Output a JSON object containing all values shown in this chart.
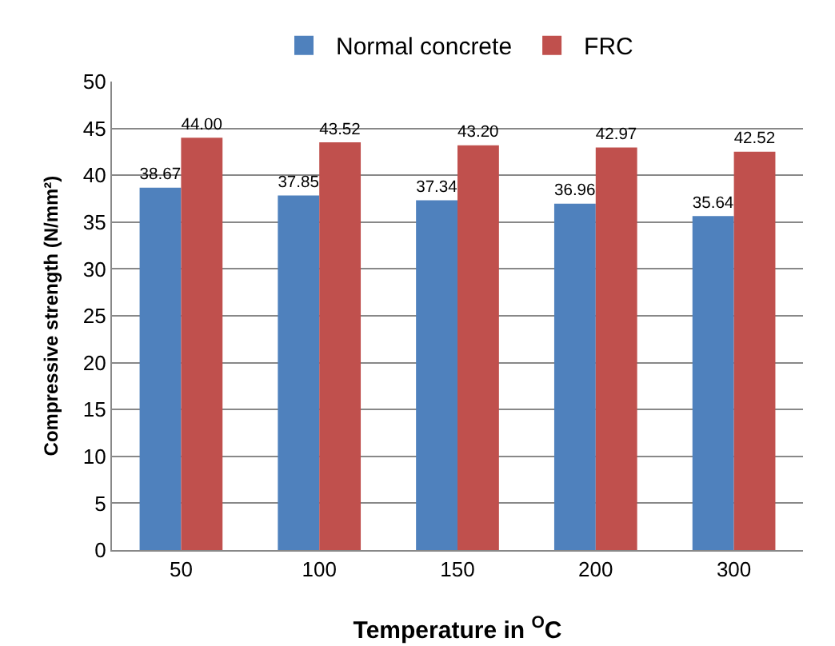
{
  "chart_data": {
    "type": "bar",
    "xlabel": "Temperature in $^{O}$C",
    "ylabel": "Compressive strength (N/mm²)",
    "categories": [
      "50",
      "100",
      "150",
      "200",
      "300"
    ],
    "series": [
      {
        "name": "Normal concrete",
        "color": "#4f81bd",
        "values": [
          38.67,
          37.85,
          37.34,
          36.96,
          35.64
        ],
        "value_labels": [
          "38.67",
          "37.85",
          "37.34",
          "36.96",
          "35.64"
        ]
      },
      {
        "name": "FRC",
        "color": "#c0504d",
        "values": [
          44.0,
          43.52,
          43.2,
          42.97,
          42.52
        ],
        "value_labels": [
          "44.00",
          "43.52",
          "43.20",
          "42.97",
          "42.52"
        ]
      }
    ],
    "ylim": [
      0,
      50
    ],
    "yticks": [
      0,
      5,
      10,
      15,
      20,
      25,
      30,
      35,
      40,
      45,
      50
    ],
    "grid": "y",
    "legend": "top"
  }
}
